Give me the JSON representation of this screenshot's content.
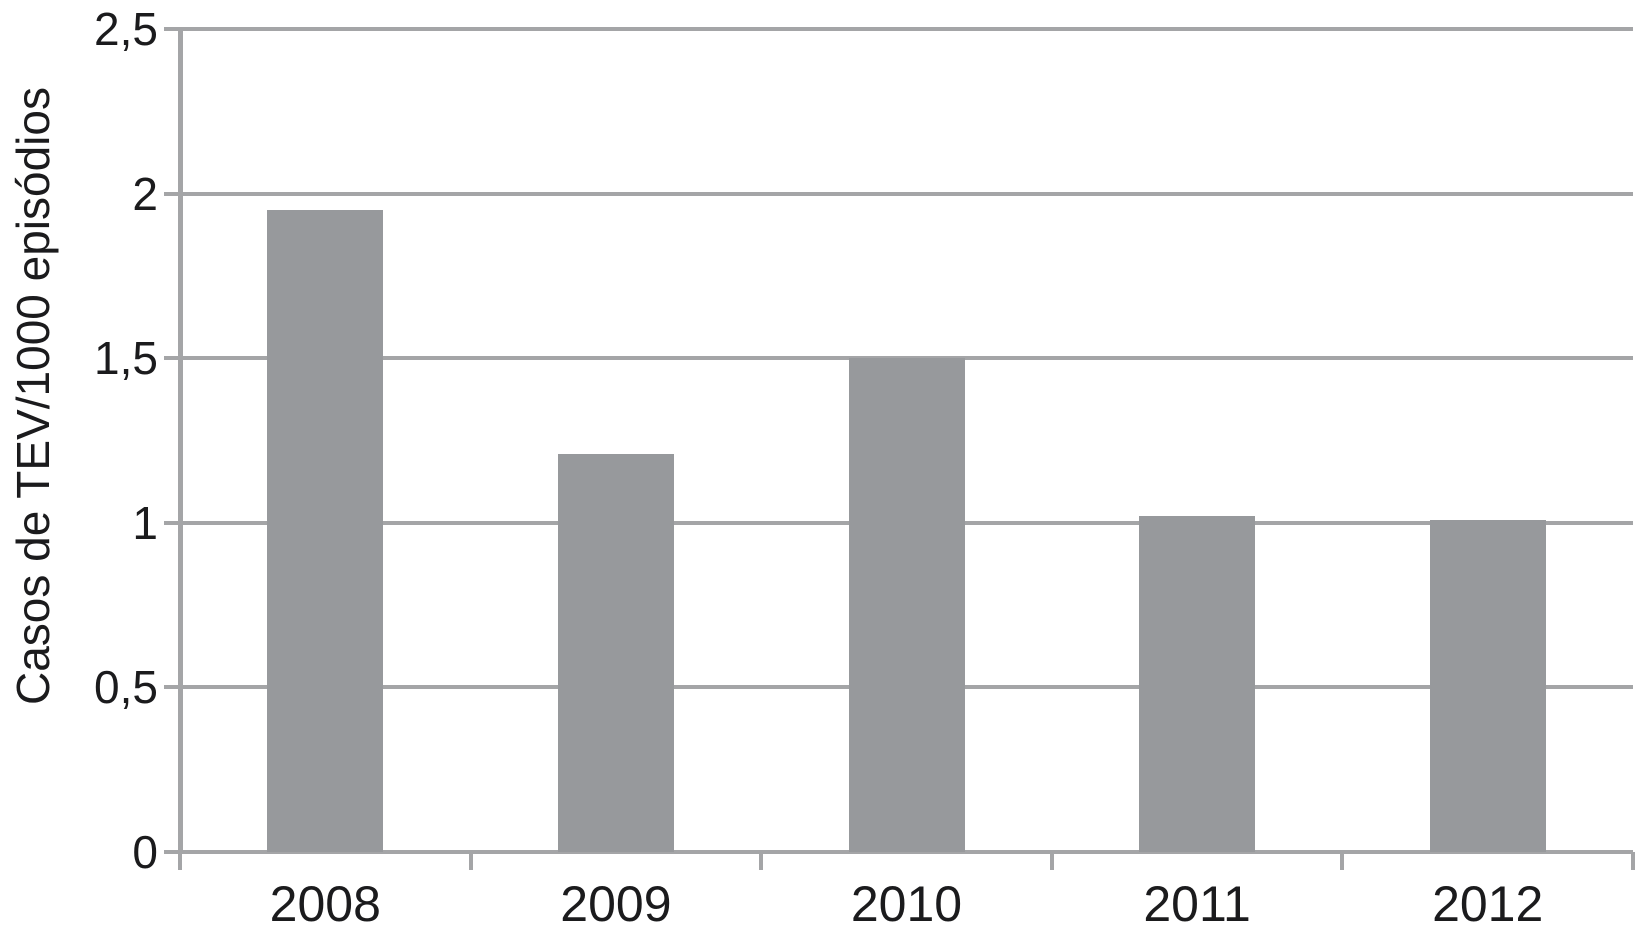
{
  "chart_data": {
    "type": "bar",
    "title": "",
    "xlabel": "",
    "ylabel": "Casos de TEV/1000 episódios",
    "categories": [
      "2008",
      "2009",
      "2010",
      "2011",
      "2012"
    ],
    "values": [
      1.95,
      1.21,
      1.5,
      1.02,
      1.01
    ],
    "ylim": [
      0,
      2.5
    ],
    "yticks": [
      0,
      0.5,
      1,
      1.5,
      2,
      2.5
    ],
    "ytick_labels": [
      "0",
      "0,5",
      "1",
      "1,5",
      "2",
      "2,5"
    ],
    "grid": true,
    "legend": false,
    "decimal_separator": ",",
    "colors": {
      "bar_fill": "#97999c",
      "axis_and_grid": "#a4a5a7",
      "text": "#1b1b1d",
      "background": "#ffffff"
    }
  }
}
